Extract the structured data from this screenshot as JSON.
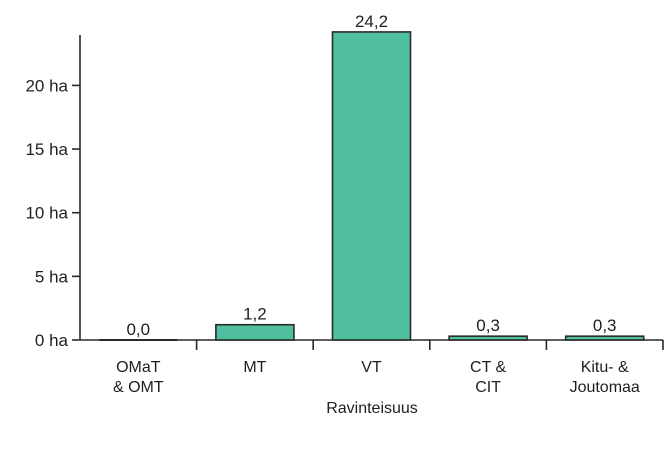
{
  "chart_data": {
    "type": "bar",
    "categories": [
      [
        "OMaT",
        "& OMT"
      ],
      [
        "MT"
      ],
      [
        "VT"
      ],
      [
        "CT &",
        "CIT"
      ],
      [
        "Kitu- &",
        "Joutomaa"
      ]
    ],
    "values": [
      0.0,
      1.2,
      24.2,
      0.3,
      0.3
    ],
    "data_labels": [
      "0,0",
      "1,2",
      "24,2",
      "0,3",
      "0,3"
    ],
    "y_ticks": [
      0,
      5,
      10,
      15,
      20
    ],
    "y_tick_labels": [
      "0 ha",
      "5 ha",
      "10 ha",
      "15 ha",
      "20 ha"
    ],
    "ylim": [
      0,
      24.2
    ],
    "xlabel": "Ravinteisuus",
    "ylabel": "",
    "title": "",
    "grid": false,
    "legend": "none",
    "bar_color": "#4fbf9f",
    "bar_stroke": "#2a2a2a",
    "axis_color": "#2a2a2a"
  }
}
